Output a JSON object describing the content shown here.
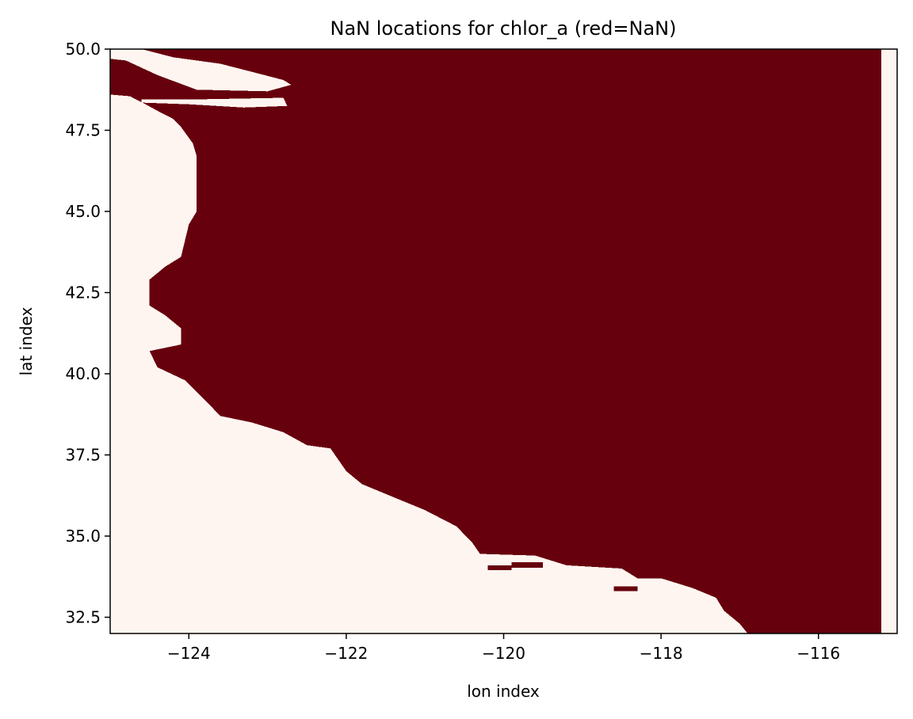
{
  "chart_data": {
    "type": "heatmap",
    "title": "NaN locations for chlor_a (red=NaN)",
    "xlabel": "lon index",
    "ylabel": "lat index",
    "xlim": [
      -125.0,
      -115.0
    ],
    "ylim": [
      32.0,
      50.0
    ],
    "xticks": [
      -124,
      -122,
      -120,
      -118,
      -116
    ],
    "xtick_labels": [
      "−124",
      "−122",
      "−120",
      "−118",
      "−116"
    ],
    "yticks": [
      32.5,
      35.0,
      37.5,
      40.0,
      42.5,
      45.0,
      47.5,
      50.0
    ],
    "ytick_labels": [
      "32.5",
      "35.0",
      "37.5",
      "40.0",
      "42.5",
      "45.0",
      "47.5",
      "50.0"
    ],
    "colors": {
      "nan": "#67000d",
      "valid": "#fff5f0"
    },
    "nan_region_coastline": [
      [
        -125.0,
        48.6
      ],
      [
        -124.75,
        48.55
      ],
      [
        -124.55,
        48.3
      ],
      [
        -124.4,
        48.1
      ],
      [
        -124.2,
        47.85
      ],
      [
        -124.1,
        47.6
      ],
      [
        -123.95,
        47.1
      ],
      [
        -123.9,
        46.7
      ],
      [
        -123.9,
        45.0
      ],
      [
        -124.0,
        44.6
      ],
      [
        -124.1,
        43.6
      ],
      [
        -124.3,
        43.3
      ],
      [
        -124.5,
        42.9
      ],
      [
        -124.5,
        42.1
      ],
      [
        -124.3,
        41.8
      ],
      [
        -124.1,
        41.4
      ],
      [
        -124.1,
        40.9
      ],
      [
        -124.5,
        40.7
      ],
      [
        -124.4,
        40.2
      ],
      [
        -124.05,
        39.8
      ],
      [
        -123.8,
        39.2
      ],
      [
        -123.6,
        38.7
      ],
      [
        -123.2,
        38.5
      ],
      [
        -122.8,
        38.2
      ],
      [
        -122.5,
        37.8
      ],
      [
        -122.2,
        37.7
      ],
      [
        -122.0,
        37.0
      ],
      [
        -121.8,
        36.6
      ],
      [
        -121.5,
        36.3
      ],
      [
        -121.0,
        35.8
      ],
      [
        -120.6,
        35.3
      ],
      [
        -120.4,
        34.8
      ],
      [
        -120.3,
        34.45
      ],
      [
        -119.6,
        34.4
      ],
      [
        -119.2,
        34.1
      ],
      [
        -118.5,
        34.0
      ],
      [
        -118.3,
        33.7
      ],
      [
        -118.0,
        33.7
      ],
      [
        -117.6,
        33.4
      ],
      [
        -117.3,
        33.1
      ],
      [
        -117.2,
        32.7
      ],
      [
        -117.0,
        32.3
      ],
      [
        -116.9,
        32.0
      ],
      [
        -115.2,
        32.0
      ],
      [
        -115.2,
        50.0
      ],
      [
        -125.0,
        50.0
      ]
    ],
    "valid_patches": [
      [
        [
          -125.0,
          50.0
        ],
        [
          -124.6,
          50.0
        ],
        [
          -124.2,
          49.75
        ],
        [
          -123.6,
          49.55
        ],
        [
          -123.2,
          49.3
        ],
        [
          -122.8,
          49.05
        ],
        [
          -122.7,
          48.9
        ],
        [
          -123.0,
          48.7
        ],
        [
          -123.9,
          48.75
        ],
        [
          -124.4,
          49.2
        ],
        [
          -124.8,
          49.65
        ],
        [
          -125.0,
          49.7
        ]
      ],
      [
        [
          -124.6,
          48.45
        ],
        [
          -123.9,
          48.45
        ],
        [
          -122.8,
          48.5
        ],
        [
          -122.75,
          48.25
        ],
        [
          -123.3,
          48.2
        ],
        [
          -124.0,
          48.3
        ],
        [
          -124.6,
          48.35
        ]
      ],
      [
        [
          -124.0,
          46.65
        ],
        [
          -123.9,
          46.65
        ],
        [
          -123.9,
          46.3
        ],
        [
          -124.0,
          46.3
        ]
      ]
    ],
    "nan_islands": [
      [
        [
          -124.6,
          48.55
        ],
        [
          -124.2,
          48.52
        ],
        [
          -124.2,
          48.47
        ],
        [
          -124.6,
          48.47
        ]
      ],
      [
        [
          -120.2,
          34.1
        ],
        [
          -119.9,
          34.1
        ],
        [
          -119.9,
          33.95
        ],
        [
          -120.2,
          33.95
        ]
      ],
      [
        [
          -119.9,
          34.2
        ],
        [
          -119.5,
          34.2
        ],
        [
          -119.5,
          34.03
        ],
        [
          -119.9,
          34.03
        ]
      ],
      [
        [
          -118.6,
          33.45
        ],
        [
          -118.3,
          33.45
        ],
        [
          -118.3,
          33.3
        ],
        [
          -118.6,
          33.3
        ]
      ]
    ],
    "grid": false,
    "legend": "none"
  }
}
